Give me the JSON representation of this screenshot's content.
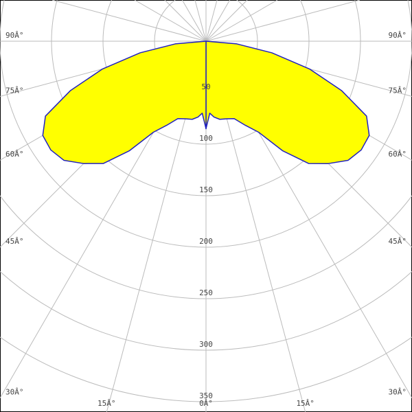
{
  "chart_data": {
    "type": "polar",
    "x": [
      0,
      3,
      6,
      10,
      15,
      20,
      25,
      30,
      35,
      40,
      45,
      50,
      55,
      60,
      65,
      70,
      75,
      80,
      85,
      90
    ],
    "series": [
      {
        "color": "#2020c0",
        "values": [
          85,
          70,
          74,
          77,
          78,
          80,
          90,
          102,
          130,
          155,
          168,
          180,
          184,
          183,
          172,
          140,
          104,
          65,
          30,
          0
        ]
      }
    ],
    "fill": "#ffff00",
    "rlim": [
      0,
      350
    ],
    "rticks": [
      50,
      100,
      150,
      200,
      250,
      300,
      350
    ],
    "angle_ticks": [
      {
        "value": 0,
        "label": "0Â°"
      },
      {
        "value": 15,
        "label": "15Â°"
      },
      {
        "value": 30,
        "label": "30Â°"
      },
      {
        "value": 45,
        "label": "45Â°"
      },
      {
        "value": 60,
        "label": "60Â°"
      },
      {
        "value": 75,
        "label": "75Â°"
      },
      {
        "value": 90,
        "label": "90Â°"
      }
    ],
    "grid": true
  }
}
